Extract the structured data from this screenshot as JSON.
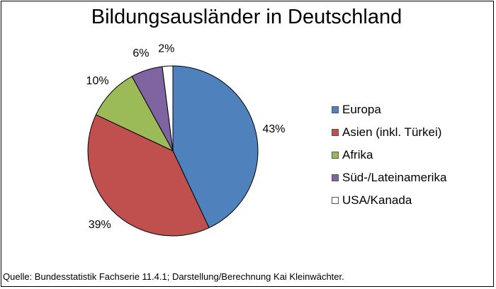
{
  "chart_data": {
    "type": "pie",
    "title": "Bildungsausländer in Deutschland",
    "categories": [
      "Europa",
      "Asien (inkl. Türkei)",
      "Afrika",
      "Süd-/Lateinamerika",
      "USA/Kanada"
    ],
    "values": [
      43,
      39,
      10,
      6,
      2
    ],
    "value_labels": [
      "43%",
      "39%",
      "10%",
      "6%",
      "2%"
    ],
    "colors": [
      "#4f81bd",
      "#c0504d",
      "#9bbb59",
      "#8064a2",
      "#ffffff"
    ],
    "legend_position": "right",
    "start": "top",
    "direction": "clockwise"
  },
  "source_note": "Quelle: Bundesstatistik Fachserie 11.4.1; Darstellung/Berechnung Kai Kleinwächter."
}
